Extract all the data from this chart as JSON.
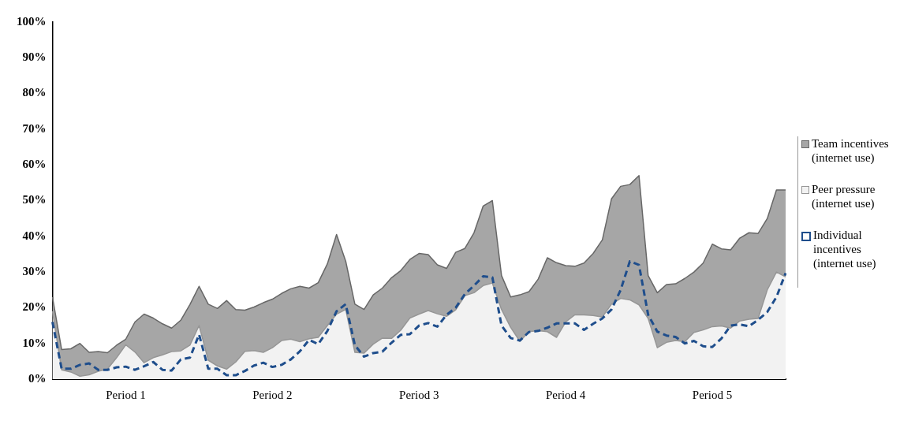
{
  "chart_data": {
    "type": "area",
    "categories": [
      null,
      null,
      null,
      null,
      null,
      null,
      null,
      null,
      "Period 1",
      null,
      null,
      null,
      null,
      null,
      null,
      null,
      null,
      null,
      null,
      null,
      null,
      null,
      null,
      null,
      "Period 2",
      null,
      null,
      null,
      null,
      null,
      null,
      null,
      null,
      null,
      null,
      null,
      null,
      null,
      null,
      null,
      "Period 3",
      null,
      null,
      null,
      null,
      null,
      null,
      null,
      null,
      null,
      null,
      null,
      null,
      null,
      null,
      null,
      "Period 4",
      null,
      null,
      null,
      null,
      null,
      null,
      null,
      null,
      null,
      null,
      null,
      null,
      null,
      null,
      null,
      "Period 5",
      null,
      null,
      null,
      null,
      null,
      null,
      null,
      null
    ],
    "series": [
      {
        "name": "Team incentives (internet use)",
        "color": "#a6a6a6",
        "values": [
          23,
          8.3,
          8.5,
          10,
          7.5,
          7.7,
          7.4,
          9.5,
          11.2,
          16,
          18.2,
          17.1,
          15.5,
          14.3,
          16.5,
          20.9,
          26,
          21,
          19.8,
          22,
          19.5,
          19.3,
          20.2,
          21.4,
          22.4,
          24,
          25.3,
          26,
          25.5,
          27,
          32.3,
          40.5,
          33,
          21,
          19.5,
          23.6,
          25.5,
          28.4,
          30.4,
          33.5,
          35.2,
          34.9,
          32,
          31,
          35.5,
          36.6,
          41,
          48.5,
          50,
          29,
          23,
          23.6,
          24.5,
          28,
          34,
          32.6,
          31.8,
          31.6,
          32.5,
          35.2,
          39,
          50.5,
          54,
          54.5,
          57,
          29,
          24.2,
          26.5,
          26.7,
          28.2,
          30,
          32.5,
          37.8,
          36.5,
          36.2,
          39.5,
          41,
          40.8,
          45,
          53,
          53
        ]
      },
      {
        "name": "Peer pressure (internet use)",
        "color": "#f2f2f2",
        "values": [
          19,
          2.6,
          2,
          0.8,
          1.2,
          2.2,
          2.8,
          6,
          9.6,
          7.6,
          4.6,
          6,
          6.8,
          7.7,
          7.9,
          9.5,
          15,
          5.3,
          3.7,
          2.8,
          4.8,
          7.8,
          8,
          7.5,
          8.8,
          10.8,
          11.2,
          10.5,
          11.3,
          11.7,
          15,
          18.2,
          19.5,
          7.5,
          7.3,
          9.8,
          11.5,
          11.4,
          13.7,
          17.1,
          18.2,
          19.2,
          18.3,
          17.6,
          19.4,
          23.4,
          24.2,
          26.2,
          26.9,
          19.5,
          14.5,
          10.6,
          13.3,
          13.6,
          13.3,
          11.7,
          16,
          18,
          18,
          17.8,
          17.4,
          21,
          22.6,
          22.2,
          20.8,
          17,
          8.8,
          10.3,
          10.8,
          10.5,
          13.1,
          13.8,
          14.7,
          14.9,
          14.3,
          16.3,
          16.8,
          17,
          25,
          30,
          28.6
        ]
      },
      {
        "name": "Individual incentives (internet use)",
        "type": "line",
        "line_style": "dashed",
        "color": "#1f4e8c",
        "values": [
          16,
          2.9,
          2.9,
          4,
          4.4,
          2.6,
          2.6,
          3.3,
          3.5,
          2.6,
          3.6,
          4.8,
          2.6,
          2.4,
          5.5,
          6,
          12.5,
          2.9,
          2.9,
          1.1,
          1.1,
          2.3,
          3.8,
          4.6,
          3.4,
          4,
          5.5,
          7.8,
          11,
          9.8,
          13.5,
          19,
          21,
          9.5,
          6.3,
          7.3,
          7.7,
          10.2,
          12.4,
          12.6,
          15,
          15.7,
          14.7,
          18,
          20,
          23.8,
          26.2,
          28.8,
          28.5,
          15,
          11.5,
          10.8,
          13.2,
          13.5,
          14.4,
          15.6,
          15.6,
          15.6,
          13.8,
          15.5,
          17,
          19.5,
          25,
          33,
          32,
          18,
          13.3,
          12.2,
          11.8,
          10,
          10.7,
          9.2,
          9,
          11.4,
          15,
          15.3,
          14.8,
          16.6,
          18.8,
          23,
          29.7
        ]
      }
    ],
    "ylim": [
      0,
      100
    ],
    "yticks": [
      {
        "value": 0,
        "label": "0%"
      },
      {
        "value": 10,
        "label": "10%"
      },
      {
        "value": 20,
        "label": "20%"
      },
      {
        "value": 30,
        "label": "30%"
      },
      {
        "value": 40,
        "label": "40%"
      },
      {
        "value": 50,
        "label": "50%"
      },
      {
        "value": 60,
        "label": "60%"
      },
      {
        "value": 70,
        "label": "70%"
      },
      {
        "value": 80,
        "label": "80%"
      },
      {
        "value": 90,
        "label": "90%"
      },
      {
        "value": 100,
        "label": "100%"
      }
    ],
    "grid": false,
    "legend": "right",
    "marker": "none"
  }
}
